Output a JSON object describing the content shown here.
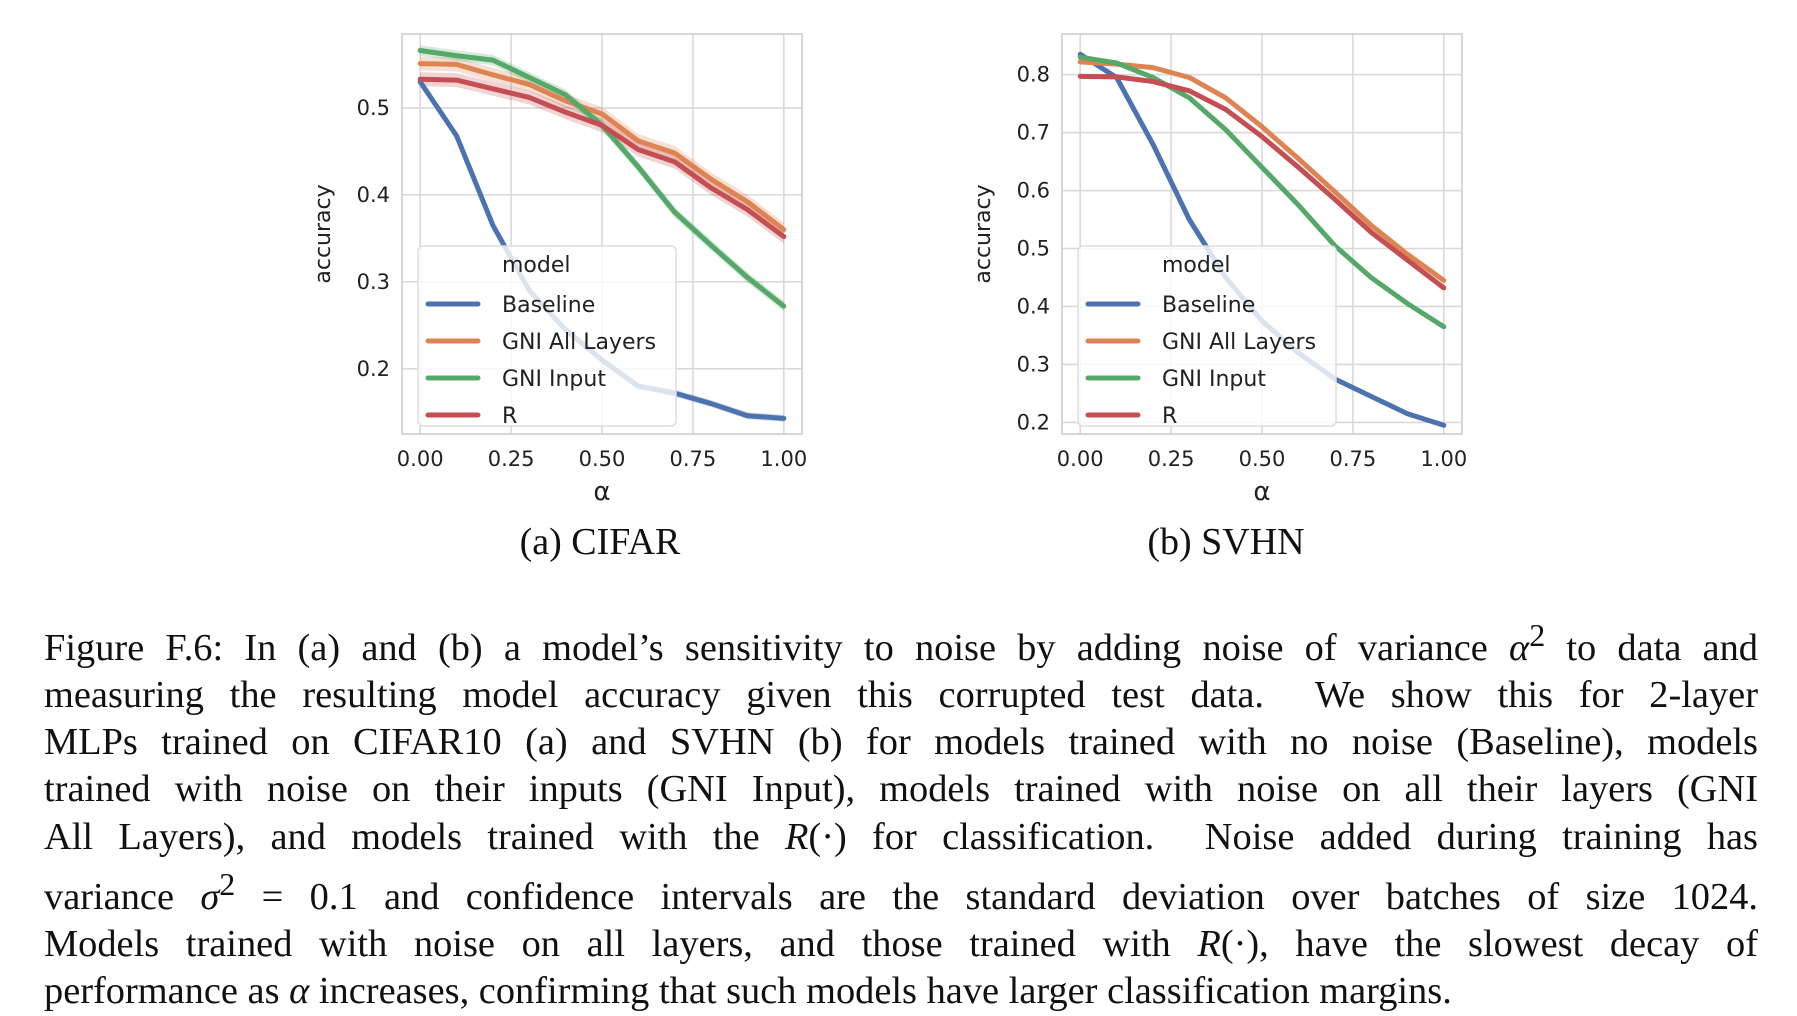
{
  "chart_data": [
    {
      "type": "line",
      "subcaption": "(a) CIFAR",
      "xlabel": "α",
      "ylabel": "accuracy",
      "x": [
        0.0,
        0.1,
        0.2,
        0.3,
        0.4,
        0.5,
        0.6,
        0.7,
        0.8,
        0.9,
        1.0
      ],
      "xticks": [
        "0.00",
        "0.25",
        "0.50",
        "0.75",
        "1.00"
      ],
      "xtick_values": [
        0.0,
        0.25,
        0.5,
        0.75,
        1.0
      ],
      "yticks": [
        "0.2",
        "0.3",
        "0.4",
        "0.5"
      ],
      "ytick_values": [
        0.2,
        0.3,
        0.4,
        0.5
      ],
      "xlim": [
        -0.05,
        1.05
      ],
      "ylim": [
        0.125,
        0.585
      ],
      "legend_title": "model",
      "legend_position": "lower-left",
      "grid": true,
      "series": [
        {
          "name": "Baseline",
          "color": "#4c72b0",
          "values": [
            0.53,
            0.468,
            0.365,
            0.29,
            0.245,
            0.21,
            0.18,
            0.172,
            0.16,
            0.146,
            0.143
          ],
          "ci": 0.004
        },
        {
          "name": "GNI All Layers",
          "color": "#dd8452",
          "values": [
            0.551,
            0.55,
            0.538,
            0.527,
            0.508,
            0.493,
            0.462,
            0.448,
            0.418,
            0.392,
            0.36
          ],
          "ci": 0.008
        },
        {
          "name": "GNI Input",
          "color": "#55a868",
          "values": [
            0.566,
            0.56,
            0.555,
            0.535,
            0.515,
            0.48,
            0.432,
            0.38,
            0.342,
            0.305,
            0.272
          ],
          "ci": 0.006
        },
        {
          "name": "R",
          "color": "#c44e52",
          "values": [
            0.533,
            0.532,
            0.522,
            0.512,
            0.495,
            0.48,
            0.452,
            0.438,
            0.408,
            0.383,
            0.352
          ],
          "ci": 0.008
        }
      ]
    },
    {
      "type": "line",
      "subcaption": "(b) SVHN",
      "xlabel": "α",
      "ylabel": "accuracy",
      "x": [
        0.0,
        0.1,
        0.2,
        0.3,
        0.4,
        0.5,
        0.6,
        0.7,
        0.8,
        0.9,
        1.0
      ],
      "xticks": [
        "0.00",
        "0.25",
        "0.50",
        "0.75",
        "1.00"
      ],
      "xtick_values": [
        0.0,
        0.25,
        0.5,
        0.75,
        1.0
      ],
      "yticks": [
        "0.2",
        "0.3",
        "0.4",
        "0.5",
        "0.6",
        "0.7",
        "0.8"
      ],
      "ytick_values": [
        0.2,
        0.3,
        0.4,
        0.5,
        0.6,
        0.7,
        0.8
      ],
      "xlim": [
        -0.05,
        1.05
      ],
      "ylim": [
        0.18,
        0.87
      ],
      "legend_title": "model",
      "legend_position": "lower-left",
      "grid": true,
      "series": [
        {
          "name": "Baseline",
          "color": "#4c72b0",
          "values": [
            0.835,
            0.795,
            0.68,
            0.55,
            0.45,
            0.375,
            0.32,
            0.275,
            0.245,
            0.215,
            0.195
          ],
          "ci": 0.003
        },
        {
          "name": "GNI All Layers",
          "color": "#dd8452",
          "values": [
            0.822,
            0.818,
            0.812,
            0.795,
            0.76,
            0.71,
            0.655,
            0.598,
            0.54,
            0.49,
            0.445
          ],
          "ci": 0.004
        },
        {
          "name": "GNI Input",
          "color": "#55a868",
          "values": [
            0.83,
            0.82,
            0.795,
            0.76,
            0.705,
            0.64,
            0.575,
            0.505,
            0.45,
            0.405,
            0.365
          ],
          "ci": 0.003
        },
        {
          "name": "R",
          "color": "#c44e52",
          "values": [
            0.797,
            0.796,
            0.788,
            0.772,
            0.74,
            0.693,
            0.64,
            0.585,
            0.528,
            0.48,
            0.432
          ],
          "ci": 0.004
        }
      ]
    }
  ],
  "caption_lines": [
    [
      "Figure F.6: In (a) and (b) a model’s sensitivity to noise by adding noise of variance ",
      "α",
      "2",
      " to data and"
    ],
    [
      "measuring the resulting model accuracy given this corrupted test data.  We show this for 2-layer"
    ],
    [
      "MLPs trained on CIFAR10 (a) and SVHN (b) for models trained with no noise (Baseline), models"
    ],
    [
      "trained with noise on their inputs (GNI Input), models trained with noise on all their layers (GNI"
    ],
    [
      "All Layers), and models trained with the ",
      "R",
      "(·) for classification.  Noise added during training has"
    ],
    [
      "variance ",
      "σ",
      "2",
      " = 0.1 and confidence intervals are the standard deviation over batches of size 1024."
    ],
    [
      "Models trained with noise on all layers, and those trained with ",
      "R",
      "(·), have the slowest decay of"
    ],
    [
      "performance as ",
      "α",
      " increases, confirming that such models have larger classification margins."
    ]
  ]
}
